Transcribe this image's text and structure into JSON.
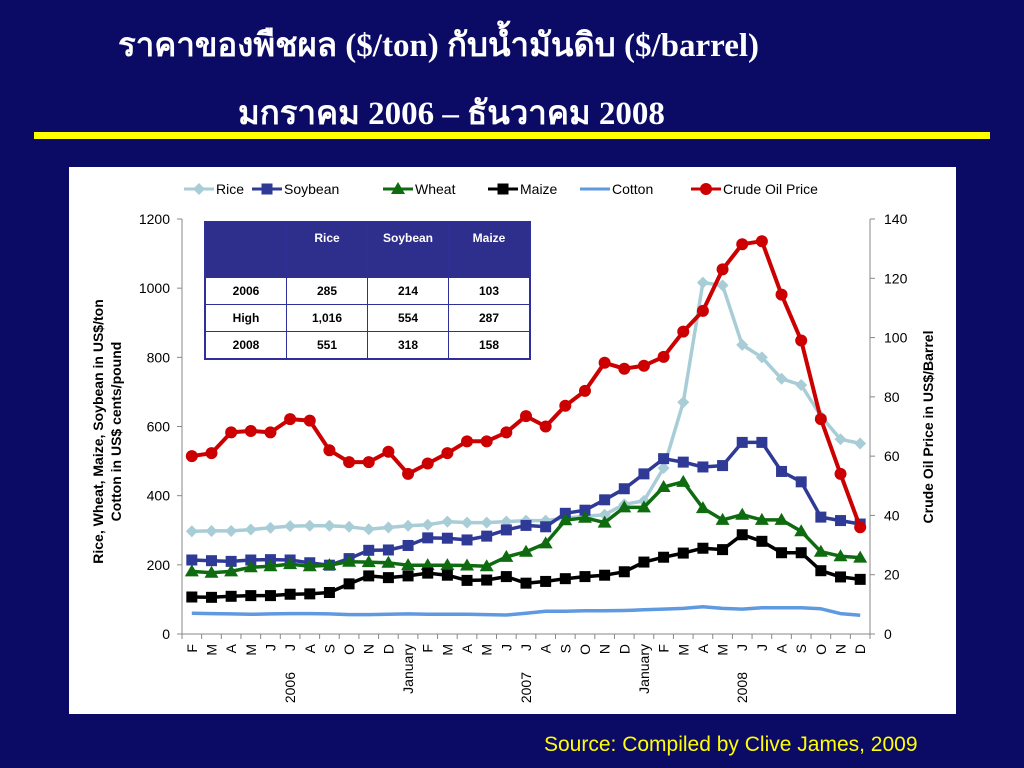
{
  "slide": {
    "title_line1": "ราคาของพืชผล ($/ton) กับน้ำมันดิบ ($/barrel)",
    "title_line2": "มกราคม 2006 – ธันวาคม 2008",
    "source": "Source: Compiled by Clive James, 2009",
    "accent_color": "#ffff00",
    "background_color": "#0b0b66"
  },
  "table": {
    "headers": [
      "",
      "Rice",
      "Soybean",
      "Maize"
    ],
    "rows": [
      [
        "2006",
        "285",
        "214",
        "103"
      ],
      [
        "High",
        "1,016",
        "554",
        "287"
      ],
      [
        "2008",
        "551",
        "318",
        "158"
      ]
    ]
  },
  "chart_data": {
    "type": "line",
    "ylabel": "Rice, Wheat, Maize, Soybean in US$/ton\nCotton in US$ cents/pound",
    "y2label": "Crude Oil Price in US$/Barrel",
    "ylim": [
      0,
      1200
    ],
    "yticks": [
      0,
      200,
      400,
      600,
      800,
      1000,
      1200
    ],
    "y2lim": [
      0,
      140
    ],
    "y2ticks": [
      0,
      20,
      40,
      60,
      80,
      100,
      120,
      140
    ],
    "grid": false,
    "legend_position": "top",
    "categories": [
      "F",
      "M",
      "A",
      "M",
      "J",
      "J",
      "A",
      "S",
      "O",
      "N",
      "D",
      "January",
      "F",
      "M",
      "A",
      "M",
      "J",
      "J",
      "A",
      "S",
      "O",
      "N",
      "D",
      "January",
      "F",
      "M",
      "A",
      "M",
      "J",
      "J",
      "A",
      "S",
      "O",
      "N",
      "D"
    ],
    "year_labels": [
      {
        "index": 5,
        "text": "2006"
      },
      {
        "index": 17,
        "text": "2007"
      },
      {
        "index": 28,
        "text": "2008"
      }
    ],
    "series": [
      {
        "name": "Rice",
        "color": "#a8cdd7",
        "marker": "diamond",
        "axis": "left",
        "values": [
          297,
          298,
          298,
          302,
          307,
          312,
          313,
          313,
          310,
          303,
          308,
          313,
          316,
          325,
          322,
          322,
          325,
          328,
          328,
          335,
          340,
          345,
          375,
          385,
          480,
          670,
          1016,
          1008,
          836,
          800,
          738,
          720,
          630,
          563,
          551
        ]
      },
      {
        "name": "Soybean",
        "color": "#2f3a96",
        "marker": "square",
        "axis": "left",
        "values": [
          214,
          212,
          210,
          214,
          215,
          214,
          206,
          199,
          218,
          242,
          243,
          256,
          278,
          277,
          272,
          283,
          301,
          314,
          310,
          349,
          358,
          388,
          420,
          463,
          507,
          497,
          483,
          487,
          554,
          554,
          470,
          440,
          338,
          328,
          318
        ]
      },
      {
        "name": "Wheat",
        "color": "#0f6b0f",
        "marker": "triangle",
        "axis": "left",
        "values": [
          181,
          177,
          181,
          193,
          196,
          202,
          196,
          199,
          209,
          208,
          206,
          199,
          199,
          199,
          198,
          196,
          223,
          238,
          262,
          329,
          336,
          322,
          366,
          366,
          425,
          440,
          364,
          330,
          345,
          330,
          330,
          297,
          238,
          225,
          221
        ]
      },
      {
        "name": "Maize",
        "color": "#000000",
        "marker": "square",
        "axis": "left",
        "values": [
          107,
          106,
          109,
          111,
          111,
          115,
          116,
          120,
          145,
          168,
          163,
          168,
          176,
          170,
          155,
          156,
          166,
          147,
          152,
          160,
          166,
          170,
          180,
          208,
          222,
          234,
          248,
          244,
          287,
          268,
          235,
          235,
          183,
          165,
          158
        ]
      },
      {
        "name": "Cotton",
        "color": "#5f9ae0",
        "marker": "none",
        "axis": "left",
        "values": [
          60,
          59,
          58,
          57,
          58,
          59,
          59,
          58,
          56,
          56,
          57,
          58,
          57,
          57,
          57,
          56,
          55,
          60,
          66,
          66,
          67,
          67,
          68,
          70,
          72,
          74,
          79,
          74,
          72,
          76,
          76,
          76,
          73,
          59,
          54
        ]
      },
      {
        "name": "Crude Oil Price",
        "color": "#cc0000",
        "marker": "circle",
        "axis": "right",
        "values": [
          60,
          61,
          68,
          68.5,
          68,
          72.5,
          72,
          62,
          58,
          58,
          61.5,
          54,
          57.5,
          61,
          65,
          65,
          68,
          73.5,
          70,
          77,
          82,
          91.5,
          89.5,
          90.5,
          93.5,
          102,
          109,
          123,
          131.5,
          132.5,
          114.5,
          99,
          72.5,
          54,
          36
        ]
      }
    ]
  }
}
